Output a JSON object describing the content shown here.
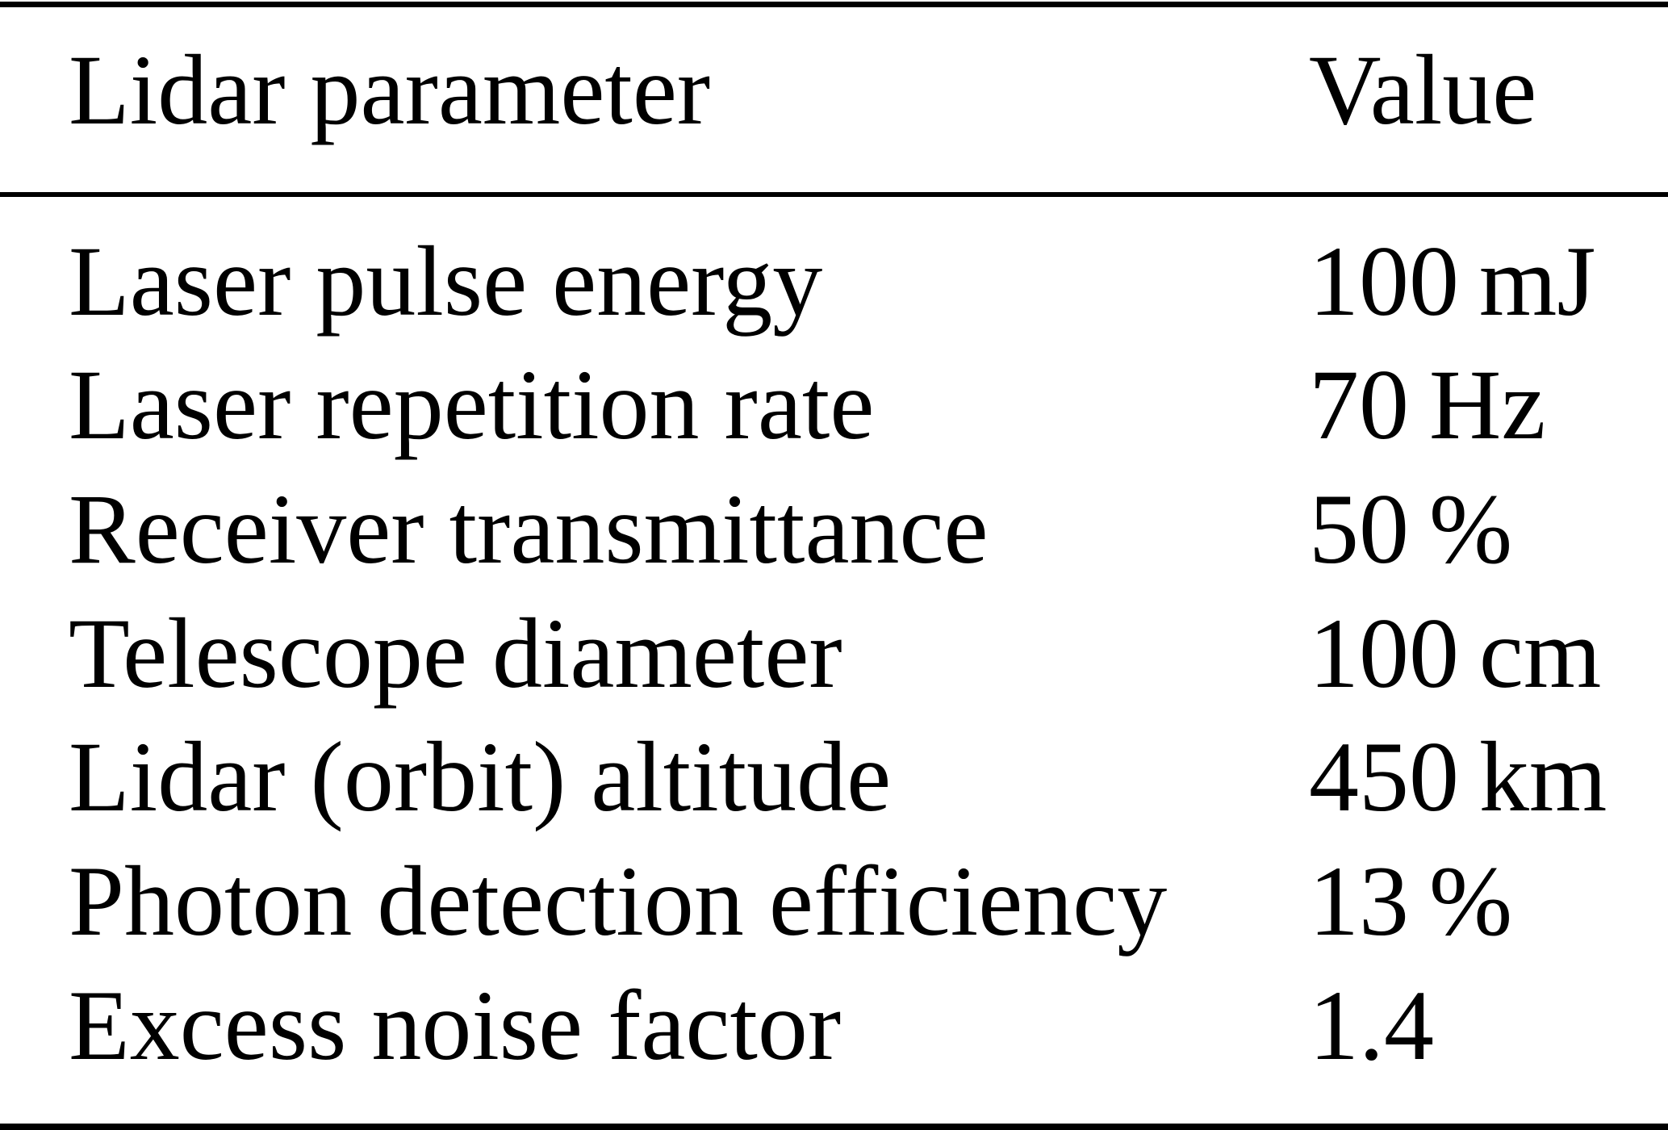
{
  "table": {
    "header": {
      "parameter": "Lidar parameter",
      "value": "Value"
    },
    "rows": [
      {
        "parameter": "Laser pulse energy",
        "value": "100 mJ"
      },
      {
        "parameter": "Laser repetition rate",
        "value": "70 Hz"
      },
      {
        "parameter": "Receiver transmittance",
        "value": "50 %"
      },
      {
        "parameter": "Telescope diameter",
        "value": "100 cm"
      },
      {
        "parameter": "Lidar (orbit) altitude",
        "value": "450 km"
      },
      {
        "parameter": "Photon detection efficiency",
        "value": "13 %"
      },
      {
        "parameter": "Excess noise factor",
        "value": "1.4"
      }
    ]
  },
  "colors": {
    "background": "#ffffff",
    "text": "#000000",
    "rule": "#000000"
  }
}
